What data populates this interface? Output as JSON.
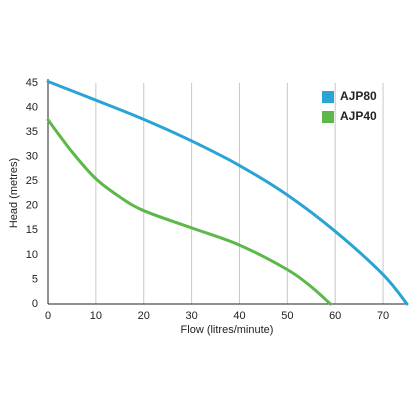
{
  "chart_data": {
    "type": "line",
    "xlabel": "Flow (litres/minute)",
    "ylabel": "Head (metres)",
    "xlim": [
      0,
      75
    ],
    "xticks": [
      0,
      10,
      20,
      30,
      40,
      50,
      60,
      70
    ],
    "ylim": [
      0,
      45
    ],
    "yticks": [
      0,
      5,
      10,
      15,
      20,
      25,
      30,
      35,
      40,
      45
    ],
    "grid": "x",
    "legend": "top-right",
    "series": [
      {
        "name": "AJP80",
        "color": "#2aa4d4",
        "x": [
          0,
          10,
          20,
          30,
          40,
          50,
          60,
          70,
          75
        ],
        "values": [
          45.3,
          41.5,
          37.6,
          33.2,
          28.2,
          22.2,
          14.8,
          6,
          0
        ]
      },
      {
        "name": "AJP40",
        "color": "#5cb84a",
        "x": [
          0,
          5,
          10,
          15,
          20,
          30,
          40,
          50,
          55,
          59
        ],
        "values": [
          37.5,
          31,
          25.5,
          21.8,
          19,
          15.5,
          12,
          7,
          3.5,
          0
        ]
      }
    ]
  }
}
